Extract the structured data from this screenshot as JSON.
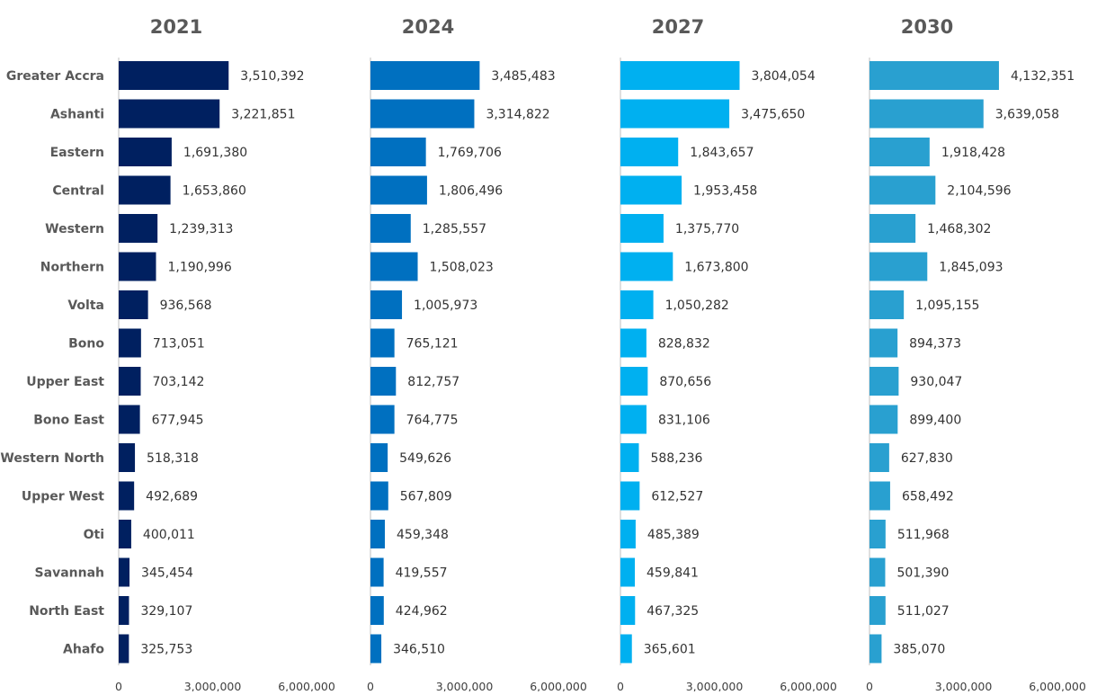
{
  "chart_data": {
    "type": "bar",
    "orientation": "horizontal",
    "categories": [
      "Greater Accra",
      "Ashanti",
      "Eastern",
      "Central",
      "Western",
      "Northern",
      "Volta",
      "Bono",
      "Upper East",
      "Bono East",
      "Western North",
      "Upper West",
      "Oti",
      "Savannah",
      "North East",
      "Ahafo"
    ],
    "xlim": [
      0,
      6000000
    ],
    "ticks": [
      "0",
      "3,000,000",
      "6,000,000"
    ],
    "tick_values": [
      0,
      3000000,
      6000000
    ],
    "grid": false,
    "legend": "none",
    "panels": [
      {
        "title": "2021",
        "color": "#002060",
        "values": [
          3510392,
          3221851,
          1691380,
          1653860,
          1239313,
          1190996,
          936568,
          713051,
          703142,
          677945,
          518318,
          492689,
          400011,
          345454,
          329107,
          325753
        ],
        "labels": [
          "3,510,392",
          "3,221,851",
          "1,691,380",
          "1,653,860",
          "1,239,313",
          "1,190,996",
          "936,568",
          "713,051",
          "703,142",
          "677,945",
          "518,318",
          "492,689",
          "400,011",
          "345,454",
          "329,107",
          "325,753"
        ]
      },
      {
        "title": "2024",
        "color": "#0070C0",
        "values": [
          3485483,
          3314822,
          1769706,
          1806496,
          1285557,
          1508023,
          1005973,
          765121,
          812757,
          764775,
          549626,
          567809,
          459348,
          419557,
          424962,
          346510
        ],
        "labels": [
          "3,485,483",
          "3,314,822",
          "1,769,706",
          "1,806,496",
          "1,285,557",
          "1,508,023",
          "1,005,973",
          "765,121",
          "812,757",
          "764,775",
          "549,626",
          "567,809",
          "459,348",
          "419,557",
          "424,962",
          "346,510"
        ]
      },
      {
        "title": "2027",
        "color": "#00B0F0",
        "values": [
          3804054,
          3475650,
          1843657,
          1953458,
          1375770,
          1673800,
          1050282,
          828832,
          870656,
          831106,
          588236,
          612527,
          485389,
          459841,
          467325,
          365601
        ],
        "labels": [
          "3,804,054",
          "3,475,650",
          "1,843,657",
          "1,953,458",
          "1,375,770",
          "1,673,800",
          "1,050,282",
          "828,832",
          "870,656",
          "831,106",
          "588,236",
          "612,527",
          "485,389",
          "459,841",
          "467,325",
          "365,601"
        ]
      },
      {
        "title": "2030",
        "color": "#29A0D0",
        "values": [
          4132351,
          3639058,
          1918428,
          2104596,
          1468302,
          1845093,
          1095155,
          894373,
          930047,
          899400,
          627830,
          658492,
          511968,
          501390,
          511027,
          385070
        ],
        "labels": [
          "4,132,351",
          "3,639,058",
          "1,918,428",
          "2,104,596",
          "1,468,302",
          "1,845,093",
          "1,095,155",
          "894,373",
          "930,047",
          "899,400",
          "627,830",
          "658,492",
          "511,968",
          "501,390",
          "511,027",
          "385,070"
        ]
      }
    ]
  }
}
